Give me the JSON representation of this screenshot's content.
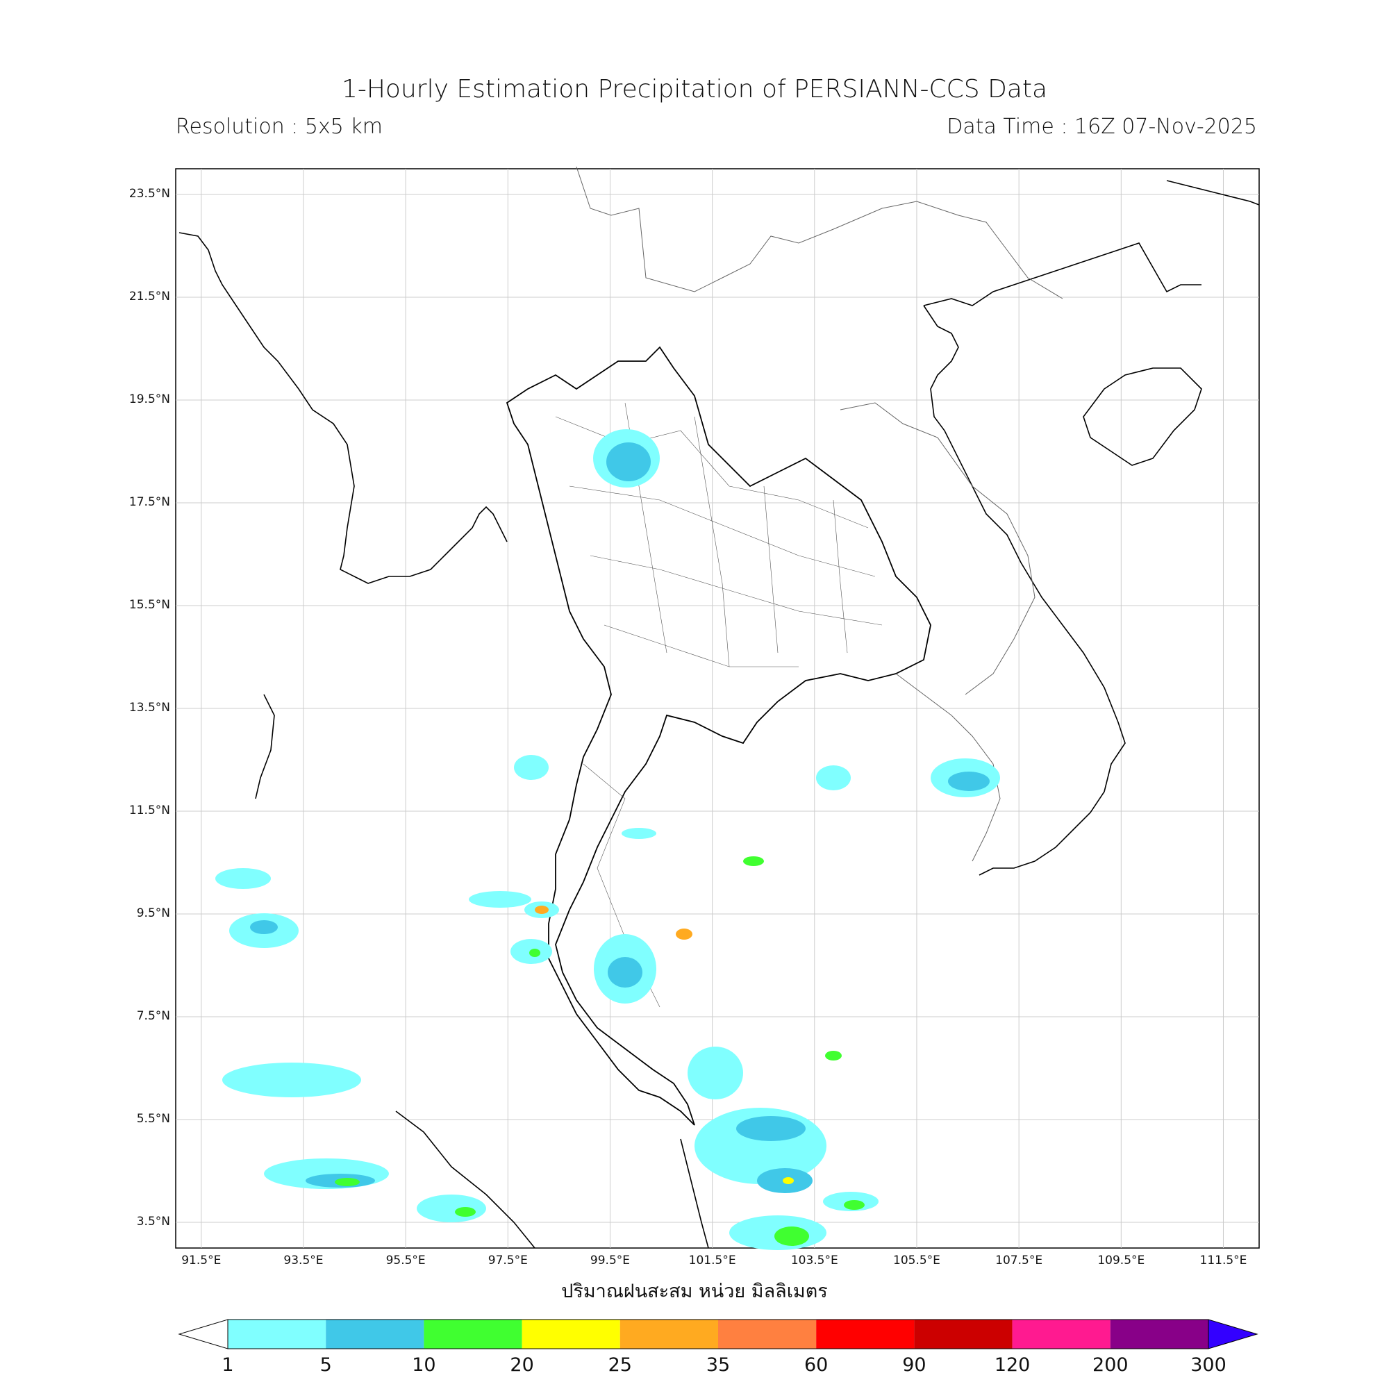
{
  "title": "1-Hourly Estimation Precipitation of PERSIANN-CCS Data",
  "resolution": "Resolution : 5x5 km",
  "data_time": "Data Time : 16Z 07-Nov-2025",
  "map": {
    "lat_ticks": [
      "23.5°N",
      "21.5°N",
      "19.5°N",
      "17.5°N",
      "15.5°N",
      "13.5°N",
      "11.5°N",
      "9.5°N",
      "7.5°N",
      "5.5°N",
      "3.5°N"
    ],
    "lon_ticks": [
      "91.5°E",
      "93.5°E",
      "95.5°E",
      "97.5°E",
      "99.5°E",
      "101.5°E",
      "103.5°E",
      "105.5°E",
      "107.5°E",
      "109.5°E",
      "111.5°E"
    ],
    "lat_range": [
      3.0,
      24.0
    ],
    "lon_range": [
      91.0,
      112.2
    ],
    "grid": true
  },
  "xlabel": "ปริมาณฝนสะสม หน่วย มิลลิเมตร",
  "colorbar": {
    "levels": [
      "1",
      "5",
      "10",
      "20",
      "25",
      "35",
      "60",
      "90",
      "120",
      "200",
      "300"
    ],
    "colors": [
      "#80ffff",
      "#40c8e8",
      "#40ff30",
      "#ffff00",
      "#ffaa20",
      "#ff8040",
      "#ff0000",
      "#cc0000",
      "#ff1a90",
      "#880088"
    ],
    "extend_max_color": "#3300ff"
  }
}
